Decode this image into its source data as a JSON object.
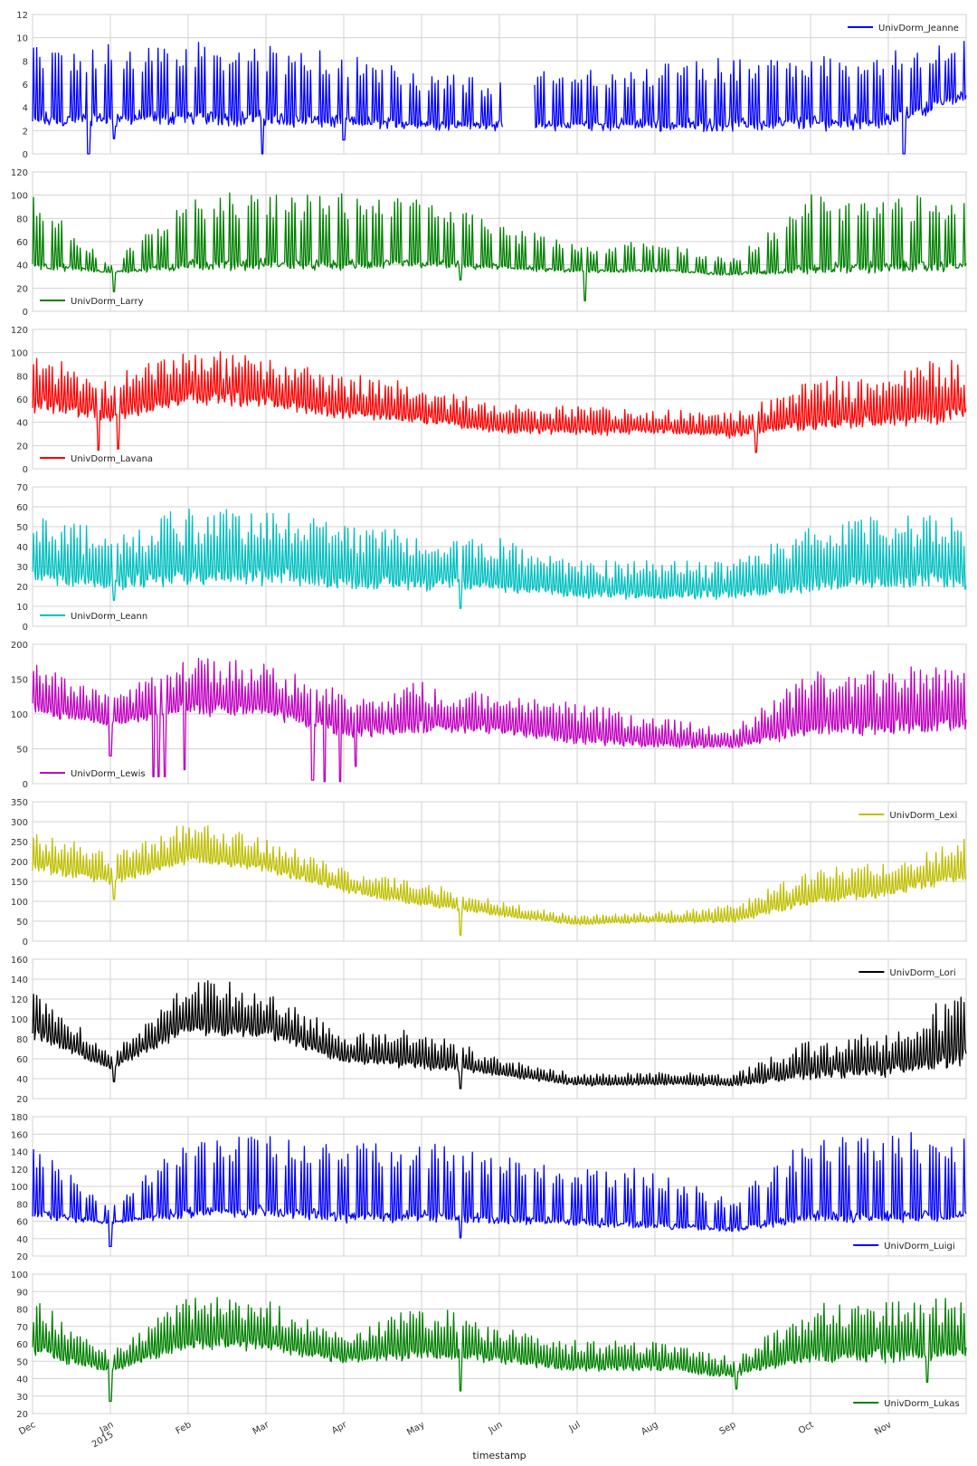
{
  "chart_data": {
    "type": "line",
    "xlabel": "timestamp",
    "x_range": [
      "Dec 2014",
      "Nov 2015"
    ],
    "x_ticks": [
      {
        "label": "Dec",
        "month_index": 0
      },
      {
        "label": "Jan",
        "sublabel": "2015",
        "month_index": 1
      },
      {
        "label": "Feb",
        "month_index": 2
      },
      {
        "label": "Mar",
        "month_index": 3
      },
      {
        "label": "Apr",
        "month_index": 4
      },
      {
        "label": "May",
        "month_index": 5
      },
      {
        "label": "Jun",
        "month_index": 6
      },
      {
        "label": "Jul",
        "month_index": 7
      },
      {
        "label": "Aug",
        "month_index": 8
      },
      {
        "label": "Sep",
        "month_index": 9
      },
      {
        "label": "Oct",
        "month_index": 10
      },
      {
        "label": "Nov",
        "month_index": 11
      }
    ],
    "grid": true,
    "series": [
      {
        "name": "UnivDorm_Jeanne",
        "color": "#0000ff",
        "legend": "top-right",
        "ylim": [
          0,
          12
        ],
        "yticks": [
          0,
          2,
          4,
          6,
          8,
          10,
          12
        ],
        "baseline": [
          2.5,
          2.6,
          2.8,
          2.6,
          2.4,
          2.3,
          2.2,
          2.2,
          2.2,
          2.2,
          2.3,
          2.4,
          4.8
        ],
        "spike_max": [
          9.6,
          9.3,
          9.4,
          9.5,
          8.4,
          7.2,
          6.5,
          7.3,
          7.6,
          8.2,
          8.5,
          9.1,
          9.8
        ],
        "week_pattern": true,
        "noise": 0.12,
        "events": [
          {
            "month": 0.72,
            "value": 0
          },
          {
            "month": 2.95,
            "value": 0
          },
          {
            "month": 11.2,
            "value": 0
          },
          {
            "month": 1.05,
            "value": 1.3
          },
          {
            "month": 4.0,
            "value": 1.2
          }
        ],
        "gaps": [
          [
            6.05,
            6.45
          ]
        ]
      },
      {
        "name": "UnivDorm_Larry",
        "color": "#008000",
        "legend": "bottom-left",
        "ylim": [
          0,
          120
        ],
        "yticks": [
          0,
          20,
          40,
          60,
          80,
          100,
          120
        ],
        "baseline": [
          37,
          33,
          36,
          37,
          36,
          38,
          36,
          33,
          34,
          31,
          33,
          34,
          35
        ],
        "spike_max": [
          100,
          40,
          100,
          102,
          100,
          96,
          75,
          58,
          60,
          45,
          100,
          102,
          100
        ],
        "week_pattern": true,
        "noise": 0.06,
        "events": [
          {
            "month": 1.05,
            "value": 17
          },
          {
            "month": 7.1,
            "value": 9
          },
          {
            "month": 5.5,
            "value": 27
          }
        ]
      },
      {
        "name": "UnivDorm_Lavana",
        "color": "#ff0000",
        "legend": "bottom-left",
        "ylim": [
          0,
          120
        ],
        "yticks": [
          0,
          20,
          40,
          60,
          80,
          100,
          120
        ],
        "baseline": [
          48,
          38,
          55,
          52,
          42,
          38,
          30,
          28,
          30,
          26,
          32,
          35,
          40
        ],
        "spike_max": [
          100,
          80,
          105,
          95,
          80,
          72,
          55,
          55,
          50,
          48,
          78,
          80,
          100
        ],
        "week_pattern": false,
        "noise": 0.12,
        "events": [
          {
            "month": 0.85,
            "value": 16
          },
          {
            "month": 1.1,
            "value": 17
          },
          {
            "month": 9.3,
            "value": 14
          }
        ]
      },
      {
        "name": "UnivDorm_Leann",
        "color": "#00bfbf",
        "legend": "bottom-left",
        "ylim": [
          0,
          70
        ],
        "yticks": [
          0,
          10,
          20,
          30,
          40,
          50,
          60,
          70
        ],
        "baseline": [
          19,
          17,
          19,
          19,
          18,
          17,
          16,
          13,
          13,
          13,
          16,
          17,
          18
        ],
        "spike_max": [
          56,
          50,
          60,
          58,
          52,
          48,
          45,
          33,
          34,
          33,
          52,
          56,
          56
        ],
        "week_pattern": false,
        "noise": 0.08,
        "events": [
          {
            "month": 5.5,
            "value": 9
          },
          {
            "month": 1.05,
            "value": 13
          }
        ]
      },
      {
        "name": "UnivDorm_Lewis",
        "color": "#bf00bf",
        "legend": "bottom-left",
        "ylim": [
          0,
          200
        ],
        "yticks": [
          0,
          50,
          100,
          150,
          200
        ],
        "baseline": [
          95,
          80,
          95,
          93,
          62,
          70,
          68,
          55,
          50,
          50,
          65,
          68,
          70
        ],
        "spike_max": [
          180,
          125,
          180,
          175,
          130,
          145,
          130,
          115,
          95,
          80,
          160,
          165,
          170
        ],
        "week_pattern": false,
        "noise": 0.08,
        "events": [
          {
            "month": 1.55,
            "value": 10
          },
          {
            "month": 1.62,
            "value": 10
          },
          {
            "month": 1.7,
            "value": 10
          },
          {
            "month": 1.0,
            "value": 40
          },
          {
            "month": 1.95,
            "value": 20
          },
          {
            "month": 3.6,
            "value": 5
          },
          {
            "month": 3.75,
            "value": 3
          },
          {
            "month": 3.95,
            "value": 3
          },
          {
            "month": 4.15,
            "value": 25
          }
        ]
      },
      {
        "name": "UnivDorm_Lexi",
        "color": "#bfbf00",
        "legend": "top-right",
        "ylim": [
          0,
          350
        ],
        "yticks": [
          0,
          50,
          100,
          150,
          200,
          250,
          300,
          350
        ],
        "baseline": [
          170,
          140,
          190,
          170,
          120,
          85,
          60,
          40,
          45,
          45,
          85,
          110,
          150
        ],
        "spike_max": [
          285,
          220,
          300,
          260,
          180,
          150,
          100,
          65,
          75,
          90,
          180,
          200,
          260
        ],
        "week_pattern": false,
        "noise": 0.08,
        "events": [
          {
            "month": 5.5,
            "value": 15
          },
          {
            "month": 1.05,
            "value": 105
          }
        ]
      },
      {
        "name": "UnivDorm_Lori",
        "color": "#000000",
        "legend": "top-right",
        "ylim": [
          20,
          160
        ],
        "yticks": [
          20,
          40,
          60,
          80,
          100,
          120,
          140,
          160
        ],
        "baseline": [
          78,
          48,
          82,
          78,
          55,
          48,
          42,
          32,
          33,
          32,
          38,
          40,
          50
        ],
        "spike_max": [
          132,
          65,
          140,
          135,
          85,
          90,
          60,
          45,
          47,
          45,
          80,
          88,
          130
        ],
        "week_pattern": false,
        "noise": 0.07,
        "events": [
          {
            "month": 1.05,
            "value": 37
          },
          {
            "month": 5.5,
            "value": 30
          }
        ]
      },
      {
        "name": "UnivDorm_Luigi",
        "color": "#0000ff",
        "legend": "bottom-right",
        "ylim": [
          20,
          180
        ],
        "yticks": [
          20,
          40,
          60,
          80,
          100,
          120,
          140,
          160,
          180
        ],
        "baseline": [
          63,
          57,
          65,
          66,
          60,
          60,
          58,
          55,
          52,
          48,
          60,
          60,
          62
        ],
        "spike_max": [
          155,
          75,
          158,
          158,
          150,
          155,
          135,
          125,
          120,
          85,
          158,
          160,
          160
        ],
        "week_pattern": true,
        "noise": 0.05,
        "events": [
          {
            "month": 1.0,
            "value": 31
          },
          {
            "month": 5.5,
            "value": 41
          }
        ]
      },
      {
        "name": "UnivDorm_Lukas",
        "color": "#008000",
        "legend": "bottom-right",
        "ylim": [
          20,
          100
        ],
        "yticks": [
          20,
          30,
          40,
          50,
          60,
          70,
          80,
          90,
          100
        ],
        "baseline": [
          50,
          43,
          55,
          55,
          48,
          50,
          48,
          43,
          44,
          40,
          48,
          48,
          50
        ],
        "spike_max": [
          88,
          55,
          90,
          85,
          65,
          83,
          70,
          62,
          62,
          52,
          82,
          85,
          88
        ],
        "week_pattern": false,
        "noise": 0.07,
        "events": [
          {
            "month": 1.0,
            "value": 27
          },
          {
            "month": 5.5,
            "value": 33
          },
          {
            "month": 9.05,
            "value": 34
          },
          {
            "month": 11.5,
            "value": 38
          }
        ]
      }
    ]
  }
}
